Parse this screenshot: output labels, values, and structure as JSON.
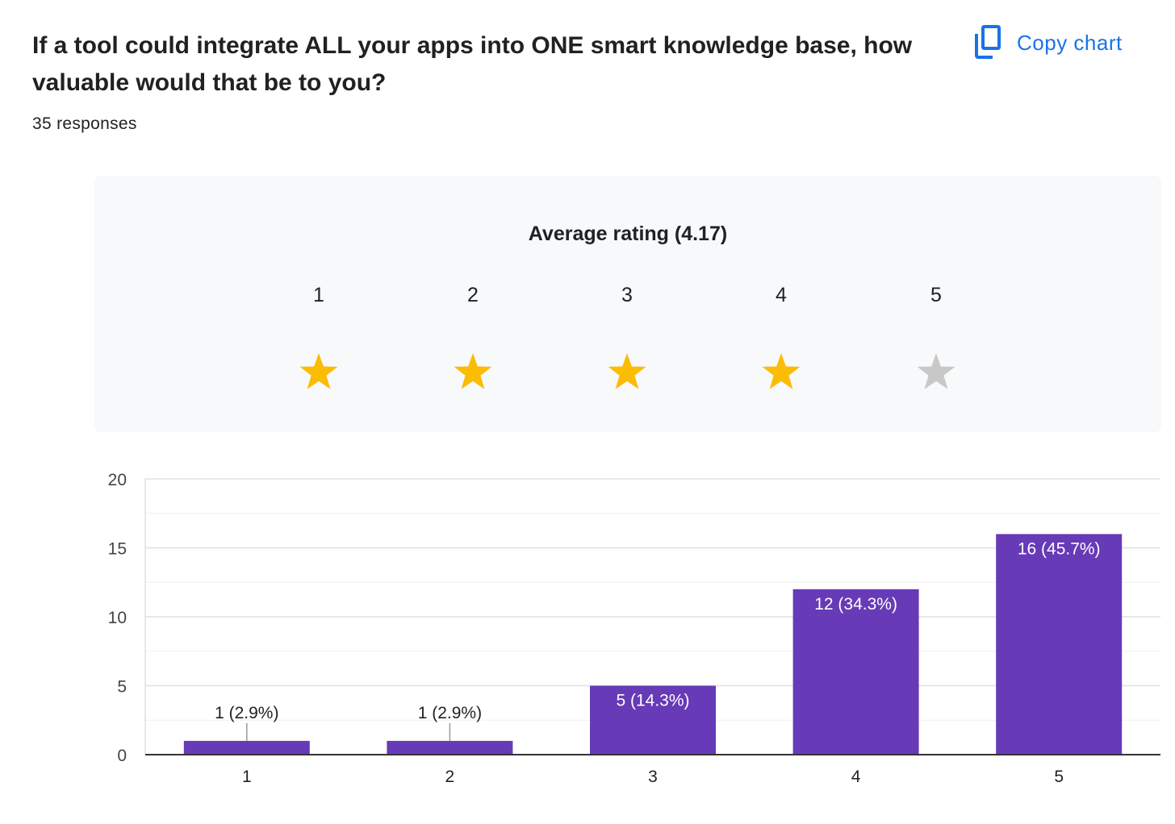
{
  "question": {
    "title": "If a tool could integrate ALL your apps into ONE smart knowledge base, how valuable would that be to you?",
    "responses": "35 responses"
  },
  "copy_chart": {
    "label": "Copy chart",
    "icon": "copy-icon",
    "color": "#1a73e8"
  },
  "rating": {
    "title": "Average rating (4.17)",
    "average": 4.17,
    "stars": [
      {
        "label": "1",
        "filled": true
      },
      {
        "label": "2",
        "filled": true
      },
      {
        "label": "3",
        "filled": true
      },
      {
        "label": "4",
        "filled": true
      },
      {
        "label": "5",
        "filled": false
      }
    ],
    "colors": {
      "filled": "#fbbc04",
      "empty": "#c8c8c8"
    }
  },
  "chart_data": {
    "type": "bar",
    "categories": [
      "1",
      "2",
      "3",
      "4",
      "5"
    ],
    "values": [
      1,
      1,
      5,
      12,
      16
    ],
    "data_labels": [
      "1 (2.9%)",
      "1 (2.9%)",
      "5 (14.3%)",
      "12 (34.3%)",
      "16 (45.7%)"
    ],
    "yticks": [
      0,
      5,
      10,
      15,
      20
    ],
    "ylim": [
      0,
      20
    ],
    "xlabel": "",
    "ylabel": "",
    "grid": true,
    "bar_color": "#673ab7"
  }
}
